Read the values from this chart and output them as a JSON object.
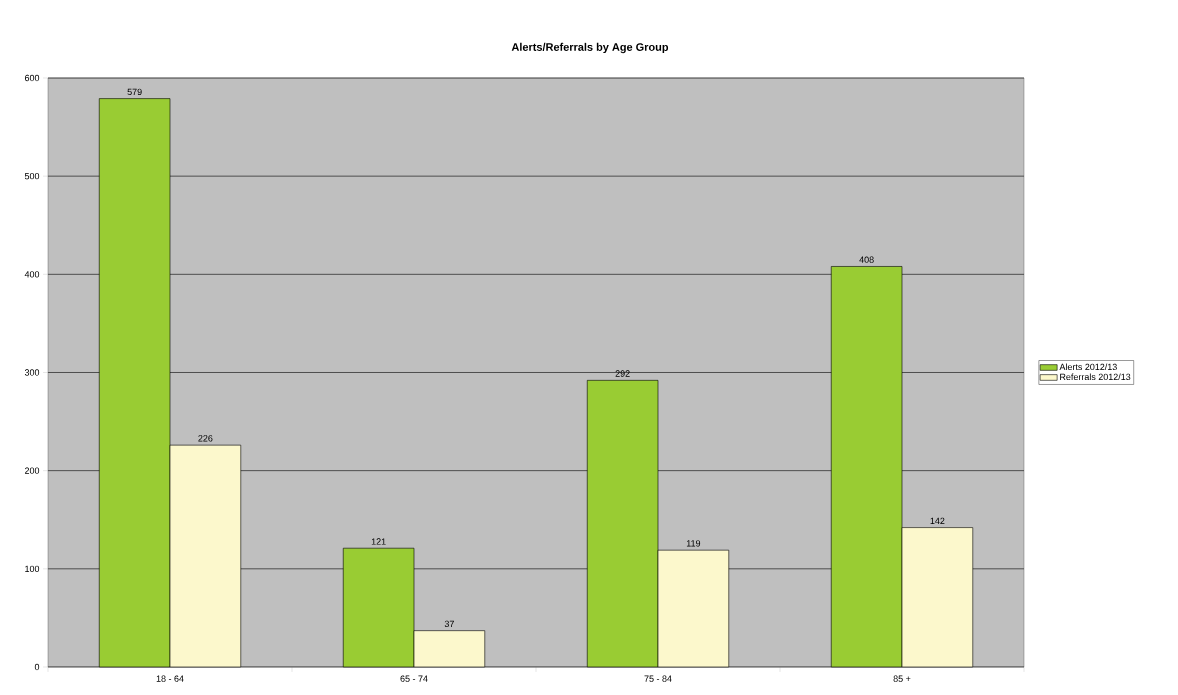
{
  "chart_data": {
    "type": "bar",
    "title": "Alerts/Referrals by Age Group",
    "categories": [
      "18 - 64",
      "65 - 74",
      "75 - 84",
      "85 +"
    ],
    "series": [
      {
        "name": "Alerts 2012/13",
        "color": "#99cc33",
        "values": [
          579,
          121,
          292,
          408
        ]
      },
      {
        "name": "Referrals 2012/13",
        "color": "#fcf8cc",
        "values": [
          226,
          37,
          119,
          142
        ]
      }
    ],
    "ylim": [
      0,
      600
    ],
    "yticks": [
      0,
      100,
      200,
      300,
      400,
      500,
      600
    ],
    "grid": "y",
    "legend": "right",
    "data_labels": true
  }
}
